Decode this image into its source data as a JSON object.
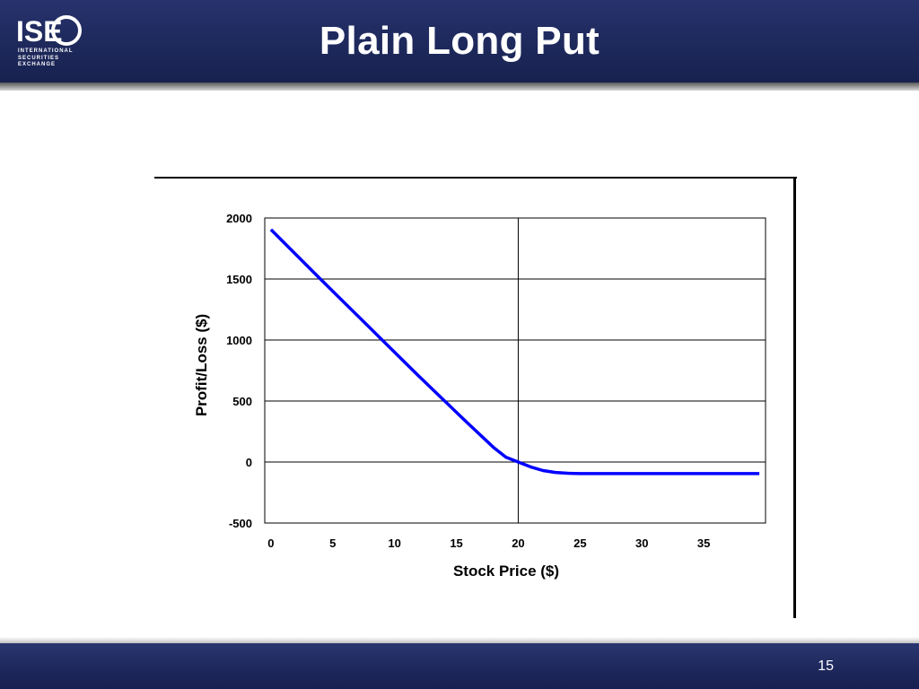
{
  "slide": {
    "title": "Plain Long Put",
    "page_number": "15",
    "logo": {
      "mark": "ISE",
      "lines": [
        "INTERNATIONAL",
        "SECURITIES",
        "EXCHANGE"
      ]
    },
    "colors": {
      "header": "#1f2a5e",
      "series": "#0000ff"
    }
  },
  "chart_data": {
    "type": "line",
    "title": "",
    "xlabel": "Stock Price ($)",
    "ylabel": "Profit/Loss ($)",
    "xlim": [
      -0.5,
      40
    ],
    "ylim": [
      -500,
      2000
    ],
    "x_ticks": [
      0,
      5,
      10,
      15,
      20,
      25,
      30,
      35
    ],
    "y_ticks": [
      -500,
      0,
      500,
      1000,
      1500,
      2000
    ],
    "grid": "horizontal lines at y ticks, vertical line at strike 20",
    "strike_line_x": 20,
    "series": [
      {
        "color": "#0000ff",
        "x": [
          0,
          4,
          8,
          12,
          16,
          18,
          19,
          20,
          21,
          22,
          23,
          24,
          25,
          30,
          35,
          39.5
        ],
        "y": [
          1905,
          1500,
          1100,
          700,
          310,
          120,
          40,
          0,
          -40,
          -70,
          -85,
          -92,
          -95,
          -95,
          -95,
          -95
        ]
      }
    ]
  }
}
